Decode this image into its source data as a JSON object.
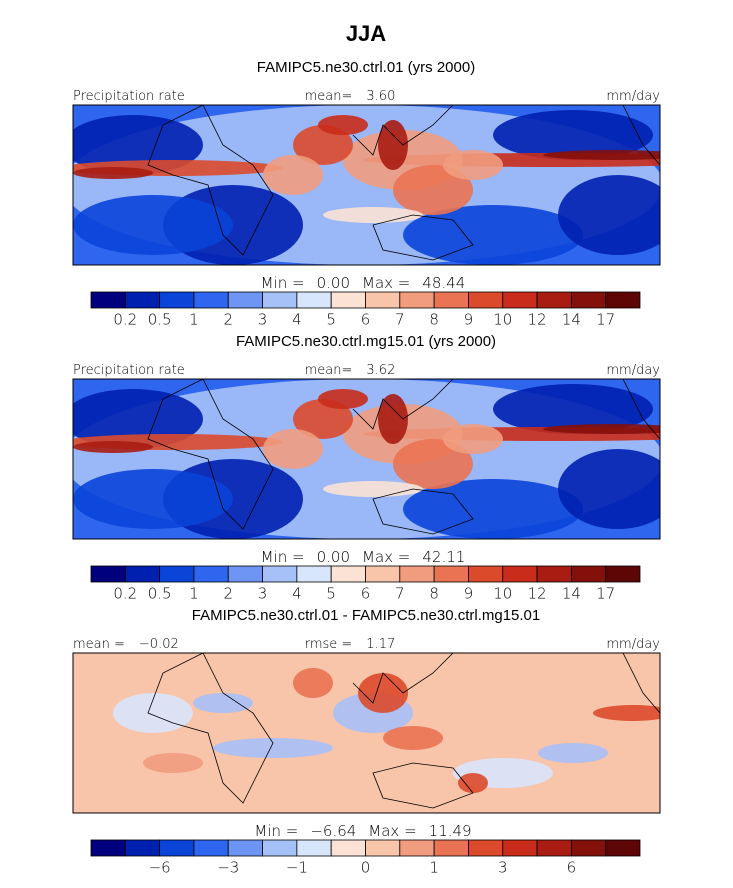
{
  "title": "JJA",
  "colors": [
    "#00007f",
    "#0020b0",
    "#0a44d8",
    "#2f66f0",
    "#6f95f4",
    "#a6c0f8",
    "#d8e6fc",
    "#fbe2d4",
    "#f8c4aa",
    "#f19c7e",
    "#ea7353",
    "#dc4a2c",
    "#c92c1a",
    "#a81c12",
    "#84100c",
    "#5e0606"
  ],
  "panels": [
    {
      "subtitle": "FAMIPC5.ne30.ctrl.01 (yrs 2000)",
      "header": {
        "left": [
          "Precipitation rate"
        ],
        "center": [
          "mean=",
          "3.60"
        ],
        "right": [
          "mm/day"
        ]
      },
      "min_label": "Min =",
      "min_value": "0.00",
      "max_label": "Max =",
      "max_value": "48.44",
      "colorbar_labels": [
        "0.2",
        "0.5",
        "1",
        "2",
        "3",
        "4",
        "5",
        "6",
        "7",
        "8",
        "9",
        "10",
        "12",
        "14",
        "17"
      ]
    },
    {
      "subtitle": "FAMIPC5.ne30.ctrl.mg15.01 (yrs 2000)",
      "header": {
        "left": [
          "Precipitation rate"
        ],
        "center": [
          "mean=",
          "3.62"
        ],
        "right": [
          "mm/day"
        ]
      },
      "min_label": "Min =",
      "min_value": "0.00",
      "max_label": "Max =",
      "max_value": "42.11",
      "colorbar_labels": [
        "0.2",
        "0.5",
        "1",
        "2",
        "3",
        "4",
        "5",
        "6",
        "7",
        "8",
        "9",
        "10",
        "12",
        "14",
        "17"
      ]
    },
    {
      "subtitle": "FAMIPC5.ne30.ctrl.01 - FAMIPC5.ne30.ctrl.mg15.01",
      "header": {
        "left": [
          "mean =",
          "−0.02"
        ],
        "center": [
          "rmse =",
          "1.17"
        ],
        "right": [
          "mm/day"
        ]
      },
      "min_label": "Min =",
      "min_value": "−6.64",
      "max_label": "Max =",
      "max_value": "11.49",
      "colorbar_labels": [
        null,
        "−6",
        null,
        "−3",
        null,
        "−1",
        null,
        "0",
        null,
        "1",
        null,
        "3",
        null,
        "6",
        null
      ]
    }
  ]
}
